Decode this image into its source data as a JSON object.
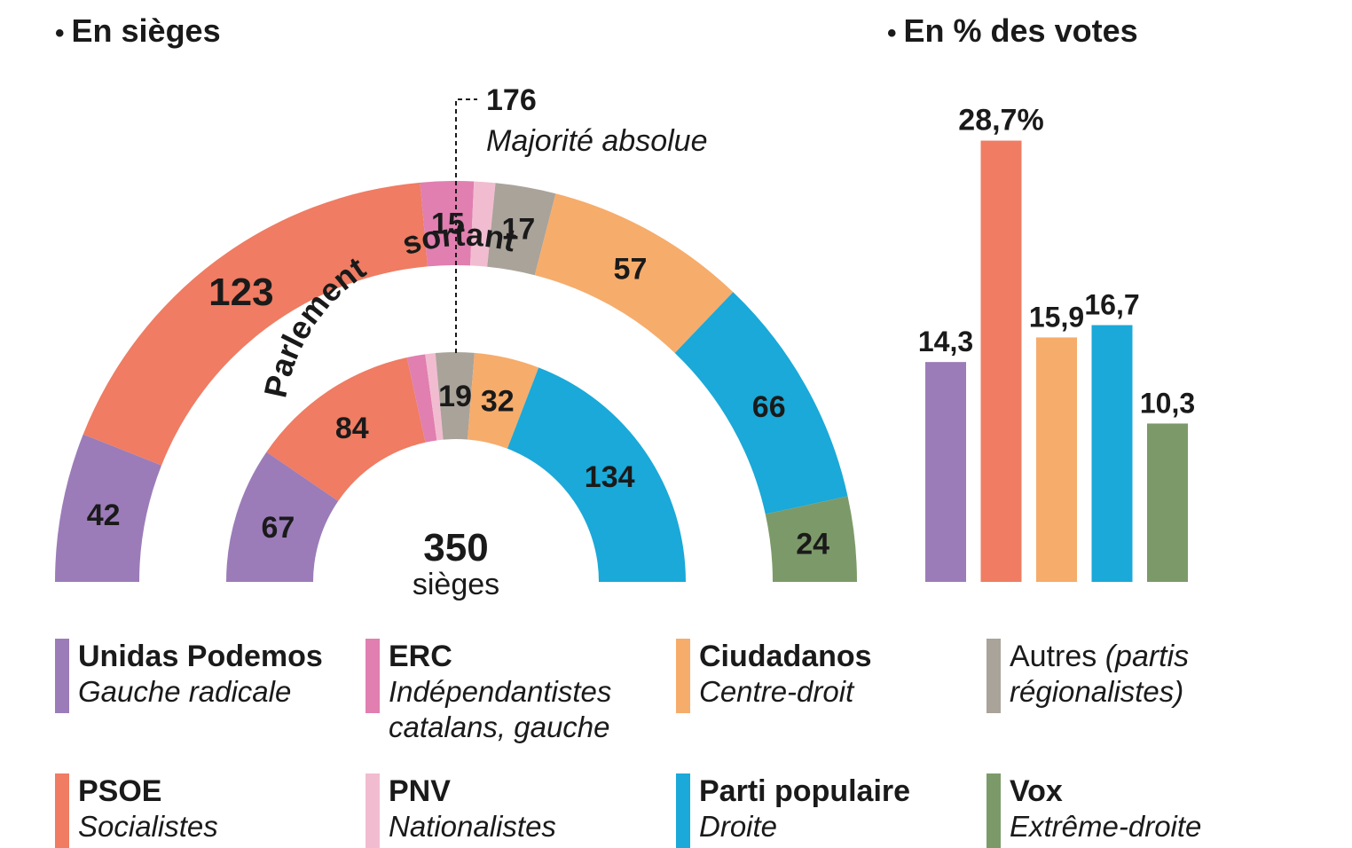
{
  "titles": {
    "seats": "En sièges",
    "votes": "En % des votes"
  },
  "colors": {
    "podemos": "#9b7cb8",
    "psoe": "#ef7c63",
    "erc": "#e07fb0",
    "pnv": "#f2bcd0",
    "autres": "#a9a39a",
    "ciudadanos": "#f6ac6b",
    "pp": "#1aa9d8",
    "vox": "#7c9a69"
  },
  "chart_data": [
    {
      "type": "pie",
      "subtype": "hemicycle",
      "total_label": "350",
      "total_sublabel": "sièges",
      "majority": {
        "value": "176",
        "label": "Majorité absolue"
      },
      "outer_ring": {
        "series": [
          {
            "party": "podemos",
            "value": 42,
            "label": "42"
          },
          {
            "party": "psoe",
            "value": 123,
            "label": "123"
          },
          {
            "party": "erc",
            "value": 15,
            "label": "15"
          },
          {
            "party": "pnv",
            "value": 6,
            "label": ""
          },
          {
            "party": "autres",
            "value": 17,
            "label": "17"
          },
          {
            "party": "ciudadanos",
            "value": 57,
            "label": "57"
          },
          {
            "party": "pp",
            "value": 66,
            "label": "66"
          },
          {
            "party": "vox",
            "value": 24,
            "label": "24"
          }
        ]
      },
      "inner_ring": {
        "title_left": "Parlement",
        "title_right": "sortant",
        "series": [
          {
            "party": "podemos",
            "value": 67,
            "label": "67"
          },
          {
            "party": "psoe",
            "value": 84,
            "label": "84"
          },
          {
            "party": "erc",
            "value": 9,
            "label": ""
          },
          {
            "party": "pnv",
            "value": 5,
            "label": ""
          },
          {
            "party": "autres",
            "value": 19,
            "label": "19"
          },
          {
            "party": "ciudadanos",
            "value": 32,
            "label": "32"
          },
          {
            "party": "pp",
            "value": 134,
            "label": "134"
          }
        ]
      }
    },
    {
      "type": "bar",
      "categories": [
        "Unidas Podemos",
        "PSOE",
        "Ciudadanos",
        "Parti populaire",
        "Vox"
      ],
      "values": [
        14.3,
        28.7,
        15.9,
        16.7,
        10.3
      ],
      "value_labels": [
        "14,3",
        "28,7%",
        "15,9",
        "16,7",
        "10,3"
      ],
      "colors": [
        "#9b7cb8",
        "#ef7c63",
        "#f6ac6b",
        "#1aa9d8",
        "#7c9a69"
      ],
      "ylim": [
        0,
        30
      ]
    }
  ],
  "legend": [
    {
      "party": "podemos",
      "name": "Unidas Podemos",
      "desc": [
        "Gauche radicale"
      ]
    },
    {
      "party": "erc",
      "name": "ERC",
      "desc": [
        "Indépendantistes",
        "catalans, gauche"
      ]
    },
    {
      "party": "ciudadanos",
      "name": "Ciudadanos",
      "desc": [
        "Centre-droit"
      ]
    },
    {
      "party": "autres",
      "name": "Autres",
      "name_suffix": " (partis",
      "desc": [
        "régionalistes)"
      ]
    },
    {
      "party": "psoe",
      "name": "PSOE",
      "desc": [
        "Socialistes"
      ]
    },
    {
      "party": "pnv",
      "name": "PNV",
      "desc": [
        "Nationalistes"
      ]
    },
    {
      "party": "pp",
      "name": "Parti populaire",
      "desc": [
        "Droite"
      ]
    },
    {
      "party": "vox",
      "name": "Vox",
      "desc": [
        "Extrême-droite"
      ]
    }
  ]
}
